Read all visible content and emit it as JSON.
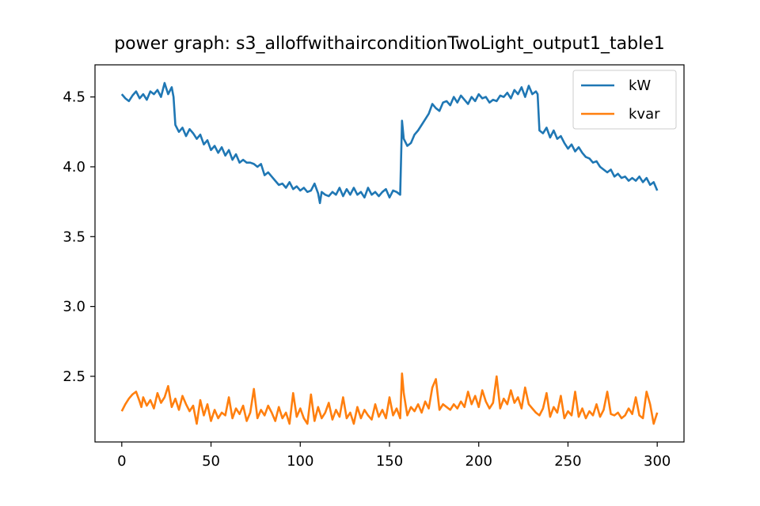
{
  "chart_data": {
    "type": "line",
    "title": "power graph: s3_alloffwithairconditionTwoLight_output1_table1",
    "xlabel": "",
    "ylabel": "",
    "xlim": [
      -15,
      315
    ],
    "ylim": [
      2.03,
      4.73
    ],
    "xticks": [
      0,
      50,
      100,
      150,
      200,
      250,
      300
    ],
    "yticks": [
      2.5,
      3.0,
      3.5,
      4.0,
      4.5
    ],
    "grid": false,
    "legend_position": "top-right",
    "series": [
      {
        "name": "kW",
        "color": "#1f77b4",
        "x": [
          0,
          2,
          4,
          6,
          8,
          10,
          12,
          14,
          16,
          18,
          20,
          22,
          24,
          26,
          28,
          29,
          30,
          32,
          34,
          36,
          38,
          40,
          42,
          44,
          46,
          48,
          50,
          52,
          54,
          56,
          58,
          60,
          62,
          64,
          66,
          68,
          70,
          72,
          74,
          76,
          78,
          80,
          82,
          84,
          86,
          88,
          90,
          92,
          94,
          96,
          98,
          100,
          102,
          104,
          106,
          108,
          110,
          111,
          112,
          114,
          116,
          118,
          120,
          122,
          124,
          126,
          128,
          130,
          132,
          134,
          136,
          138,
          140,
          142,
          144,
          146,
          148,
          150,
          152,
          154,
          156,
          157,
          158,
          160,
          162,
          164,
          166,
          168,
          170,
          172,
          174,
          176,
          178,
          180,
          182,
          184,
          186,
          188,
          190,
          192,
          194,
          196,
          198,
          200,
          202,
          204,
          206,
          208,
          210,
          212,
          214,
          216,
          218,
          220,
          222,
          224,
          226,
          228,
          230,
          232,
          233,
          234,
          236,
          238,
          240,
          242,
          244,
          246,
          248,
          250,
          252,
          254,
          256,
          258,
          260,
          262,
          264,
          266,
          268,
          270,
          272,
          274,
          276,
          278,
          280,
          282,
          284,
          286,
          288,
          290,
          292,
          294,
          296,
          298,
          300
        ],
        "values": [
          4.52,
          4.49,
          4.47,
          4.51,
          4.54,
          4.49,
          4.52,
          4.48,
          4.54,
          4.52,
          4.55,
          4.5,
          4.6,
          4.52,
          4.57,
          4.5,
          4.3,
          4.25,
          4.28,
          4.22,
          4.27,
          4.24,
          4.2,
          4.23,
          4.16,
          4.19,
          4.12,
          4.15,
          4.1,
          4.14,
          4.08,
          4.12,
          4.05,
          4.09,
          4.03,
          4.05,
          4.03,
          4.03,
          4.02,
          4.0,
          4.02,
          3.94,
          3.96,
          3.93,
          3.9,
          3.87,
          3.88,
          3.85,
          3.89,
          3.84,
          3.86,
          3.83,
          3.85,
          3.82,
          3.83,
          3.88,
          3.81,
          3.74,
          3.82,
          3.8,
          3.79,
          3.82,
          3.8,
          3.85,
          3.79,
          3.84,
          3.8,
          3.85,
          3.8,
          3.82,
          3.78,
          3.85,
          3.8,
          3.82,
          3.79,
          3.82,
          3.84,
          3.78,
          3.83,
          3.82,
          3.8,
          4.33,
          4.2,
          4.15,
          4.17,
          4.23,
          4.26,
          4.3,
          4.34,
          4.38,
          4.45,
          4.42,
          4.4,
          4.46,
          4.47,
          4.44,
          4.5,
          4.46,
          4.51,
          4.48,
          4.45,
          4.5,
          4.47,
          4.52,
          4.49,
          4.5,
          4.46,
          4.48,
          4.47,
          4.51,
          4.5,
          4.53,
          4.49,
          4.55,
          4.52,
          4.57,
          4.5,
          4.58,
          4.52,
          4.54,
          4.52,
          4.26,
          4.24,
          4.28,
          4.21,
          4.26,
          4.2,
          4.22,
          4.17,
          4.13,
          4.16,
          4.11,
          4.14,
          4.1,
          4.07,
          4.06,
          4.03,
          4.04,
          4.0,
          3.98,
          3.96,
          3.98,
          3.93,
          3.95,
          3.92,
          3.93,
          3.9,
          3.92,
          3.9,
          3.93,
          3.89,
          3.92,
          3.87,
          3.89,
          3.83
        ]
      },
      {
        "name": "kvar",
        "color": "#ff7f0e",
        "x": [
          0,
          2,
          4,
          6,
          8,
          10,
          11,
          12,
          14,
          16,
          18,
          20,
          22,
          24,
          26,
          28,
          30,
          32,
          34,
          36,
          38,
          40,
          42,
          44,
          46,
          48,
          50,
          52,
          54,
          56,
          58,
          60,
          62,
          64,
          66,
          68,
          70,
          72,
          74,
          76,
          78,
          80,
          82,
          84,
          86,
          88,
          90,
          92,
          94,
          96,
          98,
          100,
          102,
          104,
          106,
          108,
          110,
          112,
          114,
          116,
          118,
          120,
          122,
          124,
          126,
          128,
          130,
          132,
          134,
          136,
          138,
          140,
          142,
          144,
          146,
          148,
          150,
          152,
          154,
          156,
          157,
          158,
          160,
          162,
          164,
          166,
          168,
          170,
          172,
          174,
          176,
          178,
          180,
          182,
          184,
          186,
          188,
          190,
          192,
          194,
          196,
          198,
          200,
          202,
          204,
          206,
          208,
          210,
          212,
          214,
          216,
          218,
          220,
          222,
          224,
          226,
          228,
          230,
          232,
          234,
          236,
          238,
          240,
          242,
          244,
          246,
          248,
          250,
          252,
          254,
          256,
          258,
          260,
          262,
          264,
          266,
          268,
          270,
          272,
          274,
          276,
          278,
          280,
          282,
          284,
          286,
          288,
          290,
          292,
          294,
          296,
          298,
          300
        ],
        "values": [
          2.25,
          2.3,
          2.34,
          2.37,
          2.39,
          2.32,
          2.28,
          2.35,
          2.29,
          2.33,
          2.27,
          2.38,
          2.31,
          2.35,
          2.43,
          2.28,
          2.34,
          2.26,
          2.36,
          2.3,
          2.25,
          2.29,
          2.16,
          2.33,
          2.22,
          2.3,
          2.18,
          2.26,
          2.2,
          2.24,
          2.22,
          2.35,
          2.2,
          2.27,
          2.23,
          2.29,
          2.18,
          2.24,
          2.41,
          2.2,
          2.26,
          2.22,
          2.29,
          2.24,
          2.18,
          2.28,
          2.2,
          2.24,
          2.16,
          2.38,
          2.21,
          2.27,
          2.2,
          2.16,
          2.37,
          2.18,
          2.28,
          2.2,
          2.24,
          2.31,
          2.19,
          2.26,
          2.21,
          2.35,
          2.2,
          2.24,
          2.16,
          2.28,
          2.2,
          2.26,
          2.22,
          2.19,
          2.3,
          2.21,
          2.26,
          2.2,
          2.35,
          2.22,
          2.27,
          2.2,
          2.52,
          2.38,
          2.22,
          2.28,
          2.25,
          2.3,
          2.24,
          2.32,
          2.27,
          2.42,
          2.48,
          2.26,
          2.3,
          2.28,
          2.26,
          2.3,
          2.27,
          2.32,
          2.28,
          2.39,
          2.3,
          2.36,
          2.28,
          2.4,
          2.32,
          2.27,
          2.31,
          2.5,
          2.27,
          2.34,
          2.3,
          2.4,
          2.31,
          2.35,
          2.27,
          2.42,
          2.3,
          2.27,
          2.24,
          2.22,
          2.27,
          2.38,
          2.21,
          2.28,
          2.24,
          2.36,
          2.2,
          2.25,
          2.22,
          2.39,
          2.21,
          2.27,
          2.2,
          2.25,
          2.22,
          2.3,
          2.21,
          2.26,
          2.39,
          2.23,
          2.22,
          2.24,
          2.2,
          2.22,
          2.27,
          2.23,
          2.35,
          2.22,
          2.2,
          2.39,
          2.3,
          2.16,
          2.24
        ]
      }
    ]
  }
}
